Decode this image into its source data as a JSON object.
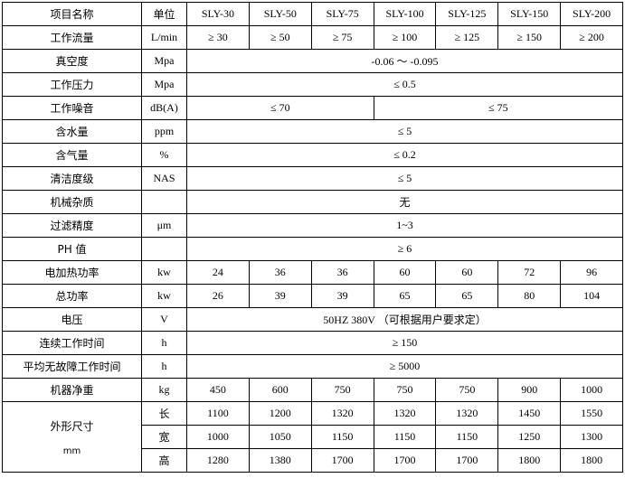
{
  "table": {
    "header": [
      "项目名称",
      "单位",
      "SLY-30",
      "SLY-50",
      "SLY-75",
      "SLY-100",
      "SLY-125",
      "SLY-150",
      "SLY-200"
    ],
    "rows": [
      {
        "label": "工作流量",
        "unit": "L/min",
        "cells": [
          "≥ 30",
          "≥ 50",
          "≥ 75",
          "≥ 100",
          "≥ 125",
          "≥ 150",
          "≥ 200"
        ]
      },
      {
        "label": "真空度",
        "unit": "Mpa",
        "cells": [
          "-0.06 ～ -0.095"
        ]
      },
      {
        "label": "工作压力",
        "unit": "Mpa",
        "cells": [
          "≤ 0.5"
        ]
      },
      {
        "label": "工作噪音",
        "unit": "dB(A)",
        "cells": [
          "≤ 70",
          "≤ 75"
        ]
      },
      {
        "label": "含水量",
        "unit": "ppm",
        "cells": [
          "≤ 5"
        ]
      },
      {
        "label": "含气量",
        "unit": "%",
        "cells": [
          "≤ 0.2"
        ]
      },
      {
        "label": "清洁度级",
        "unit": "NAS",
        "cells": [
          "≤ 5"
        ]
      },
      {
        "label": "机械杂质",
        "unit": null,
        "cells": [
          "无"
        ]
      },
      {
        "label": "过滤精度",
        "unit": "μm",
        "cells": [
          "1~3"
        ]
      },
      {
        "label": "PH 值",
        "unit": null,
        "cells": [
          "≥ 6"
        ]
      },
      {
        "label": "电加热功率",
        "unit": "kw",
        "cells": [
          "24",
          "36",
          "36",
          "60",
          "60",
          "72",
          "96"
        ]
      },
      {
        "label": "总功率",
        "unit": "kw",
        "cells": [
          "26",
          "39",
          "39",
          "65",
          "65",
          "80",
          "104"
        ]
      },
      {
        "label": "电压",
        "unit": "V",
        "cells": [
          "50HZ 380V （可根据用户要求定）"
        ]
      },
      {
        "label": "连续工作时间",
        "unit": "h",
        "cells": [
          "≥ 150"
        ]
      },
      {
        "label": "平均无故障工作时间",
        "unit": "h",
        "cells": [
          "≥ 5000"
        ]
      },
      {
        "label": "机器净重",
        "unit": "kg",
        "cells": [
          "450",
          "600",
          "750",
          "750",
          "750",
          "900",
          "1000"
        ]
      }
    ],
    "dimensions": {
      "label": "外形尺寸",
      "unit": "mm",
      "rows": [
        {
          "sub": "长",
          "cells": [
            "1100",
            "1200",
            "1320",
            "1320",
            "1320",
            "1450",
            "1550"
          ]
        },
        {
          "sub": "宽",
          "cells": [
            "1000",
            "1050",
            "1150",
            "1150",
            "1150",
            "1250",
            "1300"
          ]
        },
        {
          "sub": "高",
          "cells": [
            "1280",
            "1380",
            "1700",
            "1700",
            "1700",
            "1800",
            "1800"
          ]
        }
      ]
    }
  }
}
